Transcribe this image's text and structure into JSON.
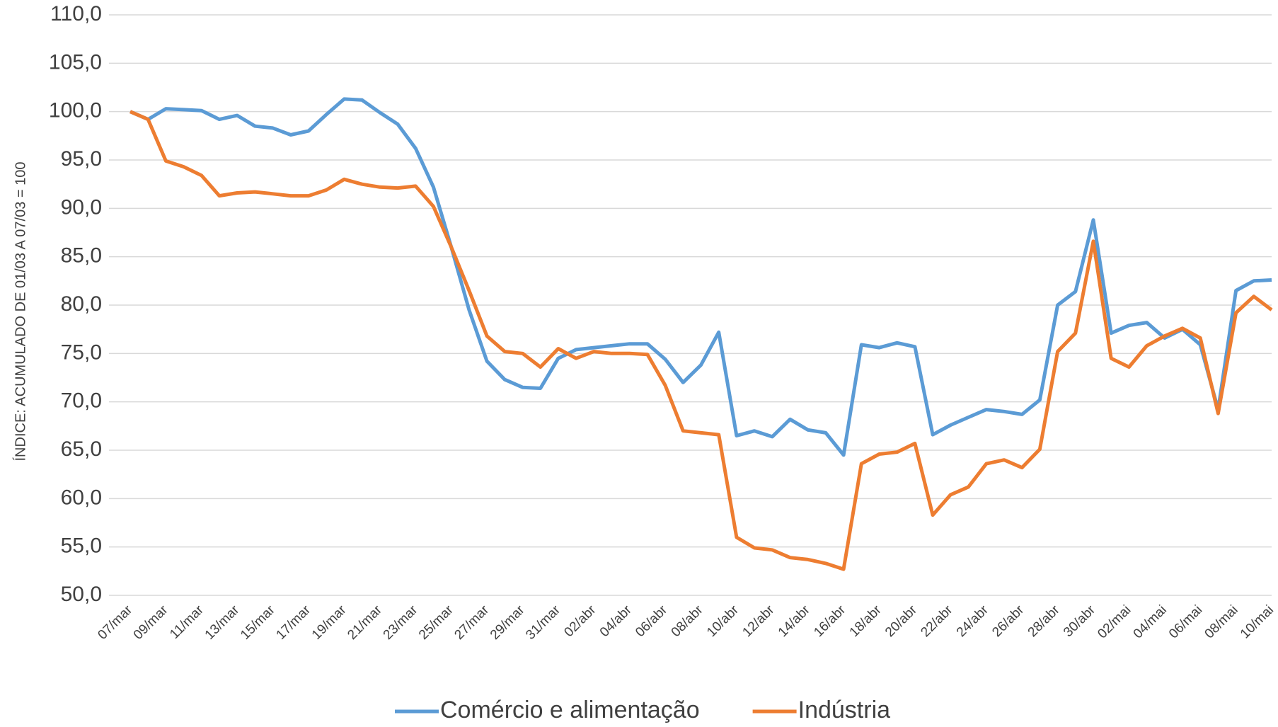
{
  "chart_data": {
    "type": "line",
    "y_label": "ÍNDICE: ACUMULADO DE 01/03 A 07/03 = 100",
    "categories": [
      "07/mar",
      null,
      "09/mar",
      null,
      "11/mar",
      null,
      "13/mar",
      null,
      "15/mar",
      null,
      "17/mar",
      null,
      "19/mar",
      null,
      "21/mar",
      null,
      "23/mar",
      null,
      "25/mar",
      null,
      "27/mar",
      null,
      "29/mar",
      null,
      "31/mar",
      null,
      "02/abr",
      null,
      "04/abr",
      null,
      "06/abr",
      null,
      "08/abr",
      null,
      "10/abr",
      null,
      "12/abr",
      null,
      "14/abr",
      null,
      "16/abr",
      null,
      "18/abr",
      null,
      "20/abr",
      null,
      "22/abr",
      null,
      "24/abr",
      null,
      "26/abr",
      null,
      "28/abr",
      null,
      "30/abr",
      null,
      "02/mai",
      null,
      "04/mai",
      null,
      "06/mai",
      null,
      "08/mai",
      null,
      "10/mai"
    ],
    "series": [
      {
        "name": "Comércio e alimentação",
        "color": "#5b9bd5",
        "values": [
          100.0,
          99.2,
          100.3,
          100.2,
          100.1,
          99.2,
          99.6,
          98.5,
          98.3,
          97.6,
          98.0,
          99.7,
          101.3,
          101.2,
          99.9,
          98.7,
          96.2,
          92.2,
          86.0,
          79.5,
          74.2,
          72.3,
          71.5,
          71.4,
          74.5,
          75.4,
          75.6,
          75.8,
          76.0,
          76.0,
          74.4,
          72.0,
          73.8,
          77.2,
          66.5,
          67.0,
          66.4,
          68.2,
          67.1,
          66.8,
          64.5,
          75.9,
          75.6,
          76.1,
          75.7,
          66.6,
          67.6,
          68.4,
          69.2,
          69.0,
          68.7,
          70.2,
          80.0,
          81.4,
          88.8,
          77.1,
          77.9,
          78.2,
          76.6,
          77.5,
          75.9,
          69.2,
          81.5,
          82.5,
          82.6
        ]
      },
      {
        "name": "Indústria",
        "color": "#ed7d31",
        "values": [
          100.0,
          99.2,
          94.9,
          94.3,
          93.4,
          91.3,
          91.6,
          91.7,
          91.5,
          91.3,
          91.3,
          91.9,
          93.0,
          92.5,
          92.2,
          92.1,
          92.3,
          90.2,
          86.0,
          81.5,
          76.8,
          75.2,
          75.0,
          73.6,
          75.5,
          74.5,
          75.2,
          75.0,
          75.0,
          74.9,
          71.7,
          67.0,
          66.8,
          66.6,
          56.0,
          54.9,
          54.7,
          53.9,
          53.7,
          53.3,
          52.7,
          63.6,
          64.6,
          64.8,
          65.7,
          58.3,
          60.4,
          61.2,
          63.6,
          64.0,
          63.2,
          65.1,
          75.2,
          77.1,
          86.6,
          74.5,
          73.6,
          75.8,
          76.8,
          77.6,
          76.6,
          68.8,
          79.2,
          80.9,
          79.5
        ]
      }
    ],
    "ylim": [
      50,
      110
    ],
    "yticks": [
      {
        "value": 50,
        "label": "50,0"
      },
      {
        "value": 55,
        "label": "55,0"
      },
      {
        "value": 60,
        "label": "60,0"
      },
      {
        "value": 65,
        "label": "65,0"
      },
      {
        "value": 70,
        "label": "70,0"
      },
      {
        "value": 75,
        "label": "75,0"
      },
      {
        "value": 80,
        "label": "80,0"
      },
      {
        "value": 85,
        "label": "85,0"
      },
      {
        "value": 90,
        "label": "90,0"
      },
      {
        "value": 95,
        "label": "95,0"
      },
      {
        "value": 100,
        "label": "100,0"
      },
      {
        "value": 105,
        "label": "105,0"
      },
      {
        "value": 110,
        "label": "110,0"
      }
    ],
    "grid": true,
    "legend": "bottom"
  }
}
